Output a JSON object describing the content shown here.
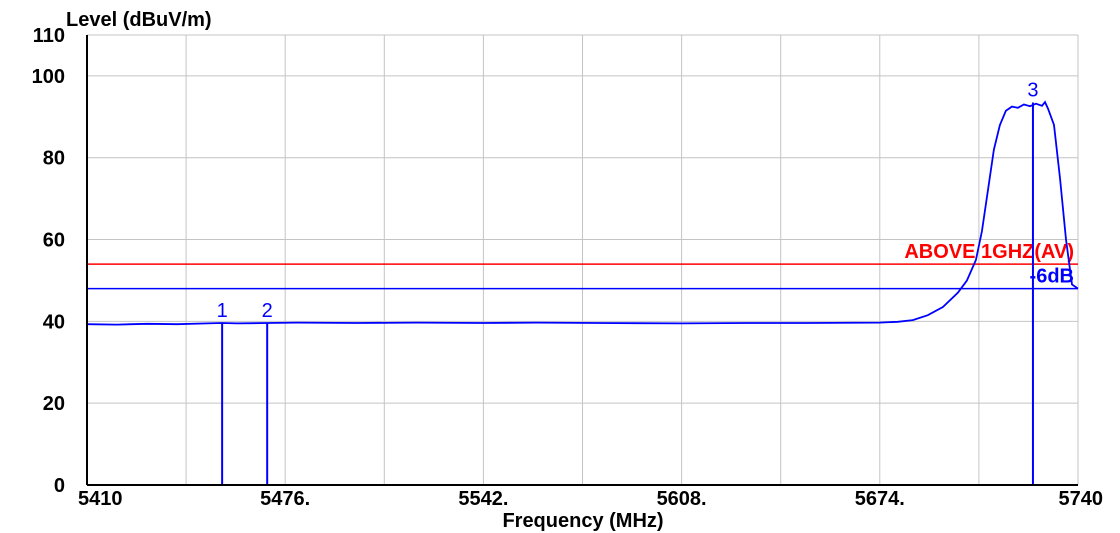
{
  "chart_data": {
    "type": "line",
    "title": "",
    "xlabel": "Frequency (MHz)",
    "ylabel": "Level (dBuV/m)",
    "xlim": [
      5410,
      5740
    ],
    "ylim": [
      0,
      110
    ],
    "x_ticks": [
      5410,
      5476,
      5542,
      5608,
      5674,
      5740
    ],
    "x_tick_labels": [
      "5410",
      "5476.",
      "5542.",
      "5608.",
      "5674.",
      "5740"
    ],
    "y_ticks": [
      0,
      20,
      40,
      60,
      80,
      100,
      110
    ],
    "y_tick_labels": [
      "0",
      "20",
      "40",
      "60",
      "80",
      "100",
      "110"
    ],
    "grid": true,
    "series": [
      {
        "color": "#0000ff",
        "x": [
          5410,
          5420,
          5430,
          5440,
          5450,
          5455,
          5460,
          5470,
          5480,
          5500,
          5520,
          5542,
          5560,
          5580,
          5608,
          5630,
          5650,
          5674,
          5680,
          5685,
          5690,
          5695,
          5700,
          5703,
          5706,
          5708,
          5710,
          5712,
          5714,
          5716,
          5718,
          5720,
          5722,
          5724,
          5726,
          5728,
          5729,
          5730,
          5732,
          5734,
          5736,
          5738,
          5740
        ],
        "y": [
          39.3,
          39.2,
          39.4,
          39.3,
          39.5,
          39.6,
          39.5,
          39.6,
          39.7,
          39.6,
          39.7,
          39.6,
          39.7,
          39.6,
          39.5,
          39.6,
          39.6,
          39.7,
          39.9,
          40.3,
          41.5,
          43.5,
          47,
          50,
          55,
          62,
          72,
          82,
          88,
          91.5,
          92.5,
          92.2,
          93,
          92.6,
          93.2,
          92.7,
          93.6,
          92,
          88,
          75,
          60,
          49,
          48
        ]
      }
    ],
    "limit_lines": [
      {
        "label": "ABOVE 1GHZ(AV)",
        "value": 54,
        "color": "#ff0000"
      },
      {
        "label": "-6dB",
        "value": 48,
        "color": "#0000ff"
      }
    ],
    "markers": [
      {
        "label": "1",
        "x": 5455,
        "y": 39.6,
        "color": "#0000ff"
      },
      {
        "label": "2",
        "x": 5470,
        "y": 39.6,
        "color": "#0000ff"
      },
      {
        "label": "3",
        "x": 5725,
        "y": 93.5,
        "color": "#0000ff"
      }
    ]
  }
}
